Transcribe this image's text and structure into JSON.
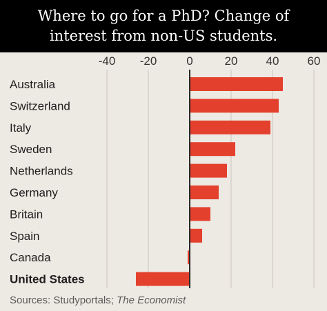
{
  "header": {
    "title": "Where to go for a PhD? Change of interest from non-US students."
  },
  "chart_data": {
    "type": "bar",
    "orientation": "horizontal",
    "title": "Where to go for a PhD? Change of interest from non-US students.",
    "categories": [
      "Australia",
      "Switzerland",
      "Italy",
      "Sweden",
      "Netherlands",
      "Germany",
      "Britain",
      "Spain",
      "Canada",
      "United States"
    ],
    "values": [
      45,
      43,
      39,
      22,
      18,
      14,
      10,
      6,
      -1,
      -26
    ],
    "highlight_category": "United States",
    "xlim": [
      -40,
      60
    ],
    "xticks": [
      "-40",
      "-20",
      "0",
      "20",
      "40",
      "60"
    ],
    "xtick_values": [
      -40,
      -20,
      0,
      20,
      40,
      60
    ],
    "xaxis_position": "top",
    "grid": true,
    "bar_color": "#e3412d",
    "grid_color": "#d6d1ca",
    "zero_line_color": "#2a2a2a"
  },
  "footer": {
    "source_prefix": "Sources: Studyportals; ",
    "source_publication": "The Economist"
  }
}
